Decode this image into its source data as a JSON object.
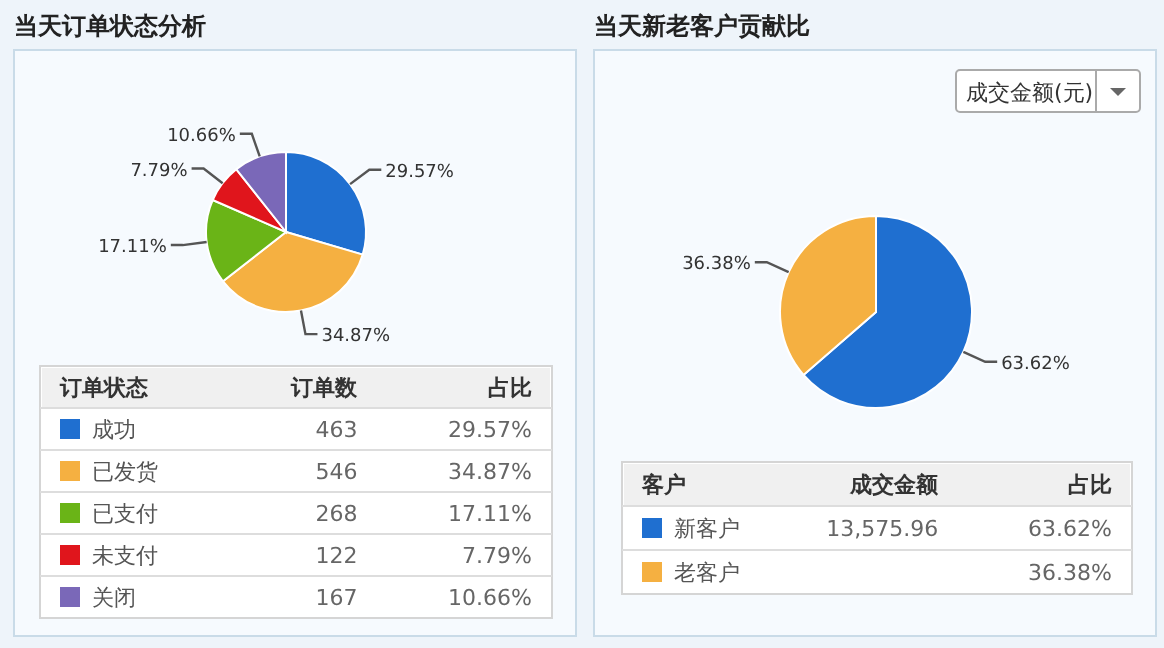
{
  "chart_data": [
    {
      "type": "pie",
      "title": "当天订单状态分析",
      "legend_title": "订单状态",
      "legend": "bottom",
      "categories": [
        "成功",
        "已发货",
        "已支付",
        "未支付",
        "关闭"
      ],
      "values": [
        29.57,
        34.87,
        17.11,
        7.79,
        10.66
      ],
      "value_labels": [
        "29.57%",
        "34.87%",
        "17.11%",
        "7.79%",
        "10.66%"
      ],
      "colors": [
        "#1f6fd0",
        "#f5b041",
        "#6ab417",
        "#e0151c",
        "#7a68b8"
      ],
      "annotations": [
        "订单数",
        "占比",
        "463",
        "546",
        "268",
        "122",
        "167"
      ]
    },
    {
      "type": "pie",
      "title": "当天新老客户贡献比",
      "legend_title": "客户",
      "legend": "bottom",
      "categories": [
        "新客户",
        "老客户"
      ],
      "values": [
        63.62,
        36.38
      ],
      "value_labels": [
        "63.62%",
        "36.38%"
      ],
      "colors": [
        "#1f6fd0",
        "#f5b041"
      ],
      "annotations": [
        "成交金额(元)",
        "成交金额",
        "占比",
        "13,575.96"
      ]
    }
  ]
}
